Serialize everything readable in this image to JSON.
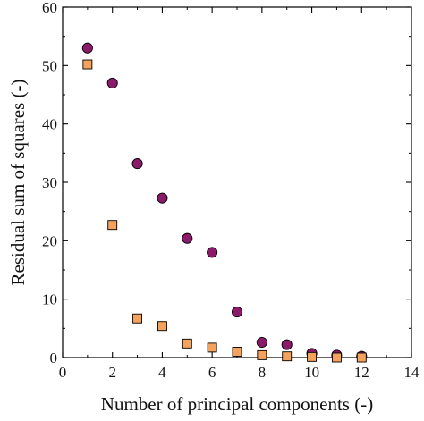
{
  "chart_data": {
    "type": "scatter",
    "xlabel": "Number of principal components (-)",
    "ylabel": "Residual sum of squares (-)",
    "xlim": [
      0,
      14
    ],
    "ylim": [
      0,
      60
    ],
    "xticks": [
      0,
      2,
      4,
      6,
      8,
      10,
      12,
      14
    ],
    "yticks": [
      0,
      10,
      20,
      30,
      40,
      50,
      60
    ],
    "grid": false,
    "series": [
      {
        "marker": "circle",
        "color": "#8b1a6b",
        "x": [
          1,
          2,
          3,
          4,
          5,
          6,
          7,
          8,
          9,
          10,
          11,
          12
        ],
        "y": [
          53.0,
          47.0,
          33.2,
          27.3,
          20.4,
          18.0,
          7.8,
          2.6,
          2.2,
          0.7,
          0.4,
          0.2
        ]
      },
      {
        "marker": "square",
        "color": "#f5a35c",
        "x": [
          1,
          2,
          3,
          4,
          5,
          6,
          7,
          8,
          9,
          10,
          11,
          12
        ],
        "y": [
          50.2,
          22.7,
          6.7,
          5.4,
          2.4,
          1.7,
          1.0,
          0.4,
          0.2,
          0.1,
          0.0,
          0.0
        ]
      }
    ]
  }
}
